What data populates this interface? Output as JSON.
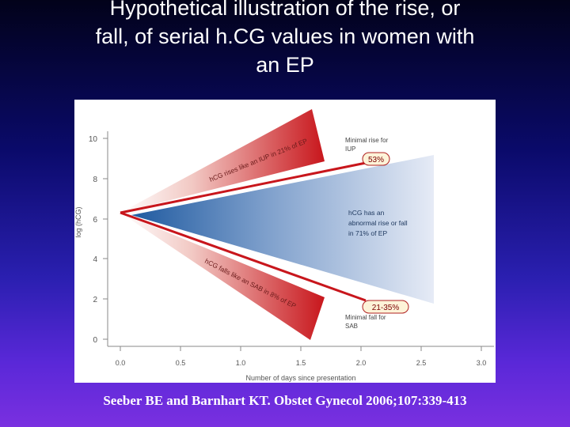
{
  "slide": {
    "title_lines": [
      "Hypothetical illustration of the rise, or",
      "fall, of serial h.CG values in women with",
      "an EP"
    ],
    "citation": "Seeber BE and Barnhart KT.  Obstet Gynecol 2006;107:339-413"
  },
  "figure": {
    "y_axis_label": "log (hCG)",
    "y_ticks": [
      "0",
      "2",
      "4",
      "6",
      "8",
      "10"
    ],
    "x_axis_label": "Number of days since presentation",
    "x_ticks": [
      "0.0",
      "0.5",
      "1.0",
      "1.5",
      "2.0",
      "2.5",
      "3.0"
    ],
    "upper_wedge_label": "hCG rises like an IUP in 21% of EP",
    "lower_wedge_label": "hCG falls like an SAB in 8% of EP",
    "middle_label_lines": [
      "hCG has an",
      "abnormal rise or fall",
      "in 71% of EP"
    ],
    "minimal_rise_lines": [
      "Minimal rise for",
      "IUP"
    ],
    "minimal_fall_lines": [
      "Minimal fall for",
      "SAB"
    ],
    "badge_upper": "53%",
    "badge_lower": "21-35%",
    "colors": {
      "red_wedge": "#c8161c",
      "blue_wedge": "#1f5aa0",
      "badge_fill": "#fdf3d8",
      "badge_border": "#b02020"
    }
  }
}
